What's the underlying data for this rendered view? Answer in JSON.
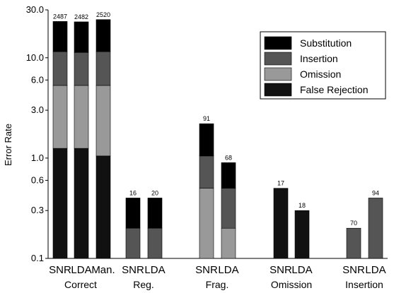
{
  "chart_data": {
    "type": "bar",
    "stacked": true,
    "ylabel": "Error Rate",
    "yscale": "log",
    "ylim": [
      0.1,
      30.0
    ],
    "yticks": [
      {
        "value": 0.1,
        "label": "0.1"
      },
      {
        "value": 0.3,
        "label": "0.3"
      },
      {
        "value": 0.6,
        "label": "0.6"
      },
      {
        "value": 1.0,
        "label": "1.0"
      },
      {
        "value": 3.0,
        "label": "3.0"
      },
      {
        "value": 6.0,
        "label": "6.0"
      },
      {
        "value": 10.0,
        "label": "10.0"
      },
      {
        "value": 30.0,
        "label": "30.0"
      }
    ],
    "legend": {
      "position": "top-right",
      "entries": [
        {
          "name": "Substitution",
          "color": "#000000"
        },
        {
          "name": "Insertion",
          "color": "#555555"
        },
        {
          "name": "Omission",
          "color": "#999999"
        },
        {
          "name": "False Rejection",
          "color": "#111111"
        }
      ]
    },
    "groups": [
      {
        "name": "Correct",
        "bars": [
          {
            "label": "SNR",
            "count": "2487",
            "stack": [
              {
                "series": "False Rejection",
                "top": 1.25
              },
              {
                "series": "Omission",
                "top": 5.3
              },
              {
                "series": "Insertion",
                "top": 11.5
              },
              {
                "series": "Substitution",
                "top": 23.0
              }
            ]
          },
          {
            "label": "LDA",
            "count": "2482",
            "stack": [
              {
                "series": "False Rejection",
                "top": 1.25
              },
              {
                "series": "Omission",
                "top": 5.3
              },
              {
                "series": "Insertion",
                "top": 11.3
              },
              {
                "series": "Substitution",
                "top": 22.8
              }
            ]
          },
          {
            "label": "Man.",
            "count": "2520",
            "stack": [
              {
                "series": "False Rejection",
                "top": 1.05
              },
              {
                "series": "Omission",
                "top": 5.3
              },
              {
                "series": "Insertion",
                "top": 11.5
              },
              {
                "series": "Substitution",
                "top": 24.0
              }
            ]
          }
        ]
      },
      {
        "name": "Reg.",
        "bars": [
          {
            "label": "SNR",
            "count": "16",
            "stack": [
              {
                "series": "Insertion",
                "top": 0.2
              },
              {
                "series": "Substitution",
                "top": 0.4
              }
            ]
          },
          {
            "label": "LDA",
            "count": "20",
            "stack": [
              {
                "series": "Insertion",
                "top": 0.2
              },
              {
                "series": "Substitution",
                "top": 0.4
              }
            ]
          }
        ]
      },
      {
        "name": "Frag.",
        "bars": [
          {
            "label": "SNR",
            "count": "91",
            "stack": [
              {
                "series": "Omission",
                "top": 0.5
              },
              {
                "series": "Insertion",
                "top": 1.05
              },
              {
                "series": "Substitution",
                "top": 2.2
              }
            ]
          },
          {
            "label": "LDA",
            "count": "68",
            "stack": [
              {
                "series": "Omission",
                "top": 0.2
              },
              {
                "series": "Insertion",
                "top": 0.5
              },
              {
                "series": "Substitution",
                "top": 0.9
              }
            ]
          }
        ]
      },
      {
        "name": "Omission",
        "bars": [
          {
            "label": "SNR",
            "count": "17",
            "stack": [
              {
                "series": "False Rejection",
                "top": 0.5
              }
            ]
          },
          {
            "label": "LDA",
            "count": "18",
            "stack": [
              {
                "series": "False Rejection",
                "top": 0.3
              }
            ]
          }
        ]
      },
      {
        "name": "Insertion",
        "bars": [
          {
            "label": "SNR",
            "count": "70",
            "stack": [
              {
                "series": "Insertion",
                "top": 0.2
              }
            ]
          },
          {
            "label": "LDA",
            "count": "94",
            "stack": [
              {
                "series": "Insertion",
                "top": 0.4
              }
            ]
          }
        ]
      }
    ]
  }
}
